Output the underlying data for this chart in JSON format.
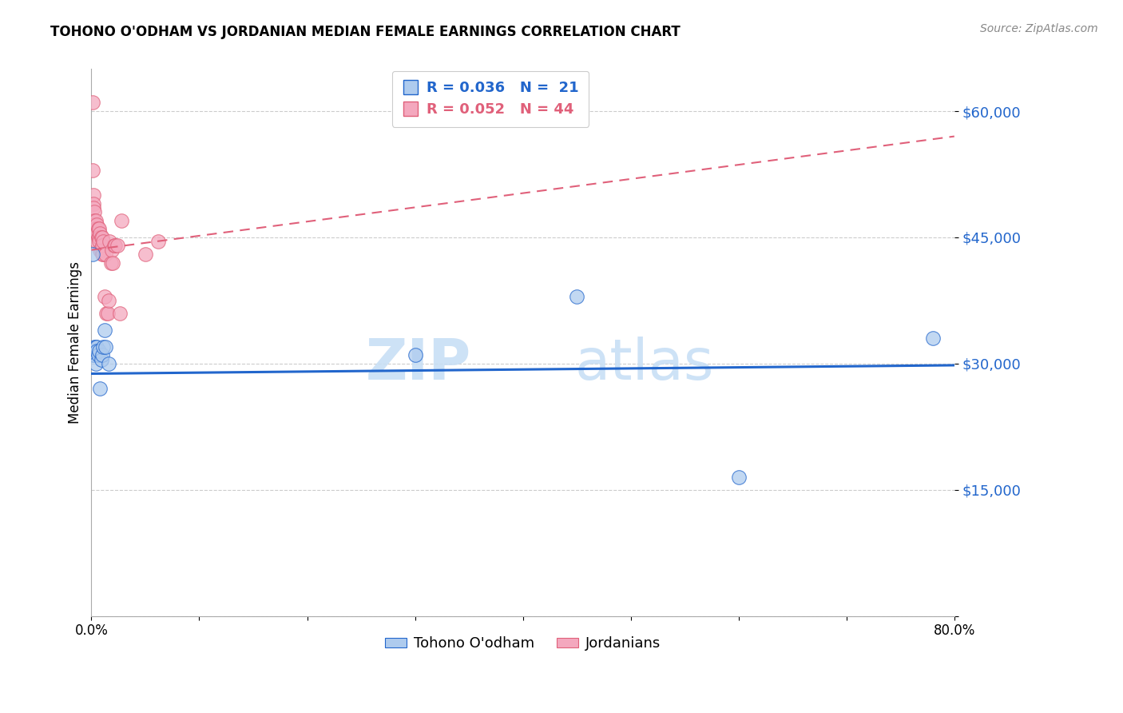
{
  "title": "TOHONO O'ODHAM VS JORDANIAN MEDIAN FEMALE EARNINGS CORRELATION CHART",
  "source": "Source: ZipAtlas.com",
  "ylabel": "Median Female Earnings",
  "y_ticks": [
    0,
    15000,
    30000,
    45000,
    60000
  ],
  "y_tick_labels": [
    "",
    "$15,000",
    "$30,000",
    "$45,000",
    "$60,000"
  ],
  "xmin": 0.0,
  "xmax": 0.8,
  "ymin": 0,
  "ymax": 65000,
  "watermark_zip": "ZIP",
  "watermark_atlas": "atlas",
  "blue_color": "#aecbee",
  "pink_color": "#f4a8be",
  "blue_line_color": "#2266cc",
  "pink_line_color": "#e0607a",
  "blue_trend_y0": 28800,
  "blue_trend_y1": 29800,
  "pink_trend_y0": 43500,
  "pink_trend_y1": 57000,
  "tohono_x": [
    0.001,
    0.002,
    0.003,
    0.003,
    0.004,
    0.004,
    0.005,
    0.005,
    0.006,
    0.007,
    0.008,
    0.009,
    0.01,
    0.011,
    0.012,
    0.013,
    0.016,
    0.3,
    0.45,
    0.6,
    0.78
  ],
  "tohono_y": [
    43000,
    31000,
    32000,
    31000,
    32000,
    30000,
    32000,
    31500,
    31000,
    31500,
    27000,
    30500,
    31000,
    32000,
    34000,
    32000,
    30000,
    31000,
    38000,
    16500,
    33000
  ],
  "jordanian_x": [
    0.001,
    0.001,
    0.002,
    0.002,
    0.002,
    0.003,
    0.003,
    0.003,
    0.004,
    0.004,
    0.004,
    0.005,
    0.005,
    0.005,
    0.006,
    0.006,
    0.007,
    0.007,
    0.007,
    0.008,
    0.008,
    0.009,
    0.009,
    0.01,
    0.01,
    0.01,
    0.011,
    0.011,
    0.012,
    0.013,
    0.014,
    0.015,
    0.016,
    0.017,
    0.018,
    0.019,
    0.02,
    0.021,
    0.022,
    0.024,
    0.026,
    0.028,
    0.05,
    0.062
  ],
  "jordanian_y": [
    61000,
    53000,
    50000,
    49000,
    48500,
    48000,
    47000,
    46500,
    47000,
    46000,
    45500,
    46500,
    45500,
    44500,
    46000,
    45000,
    46000,
    45000,
    44500,
    45500,
    43500,
    45000,
    43500,
    45000,
    44000,
    43000,
    44500,
    43000,
    38000,
    43000,
    36000,
    36000,
    37500,
    44500,
    42000,
    43500,
    42000,
    44000,
    44000,
    44000,
    36000,
    47000,
    43000,
    44500
  ]
}
